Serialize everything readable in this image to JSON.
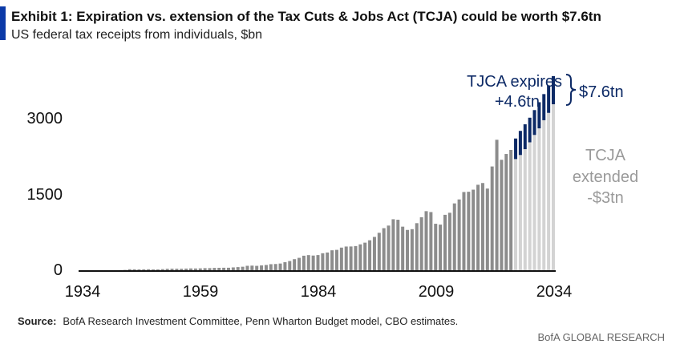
{
  "header": {
    "title": "Exhibit 1: Expiration vs. extension of the Tax Cuts & Jobs Act (TCJA) could be worth $7.6tn",
    "subtitle": "US federal tax receipts from individuals, $bn"
  },
  "chart_data": {
    "type": "bar",
    "title": "Exhibit 1: Expiration vs. extension of the Tax Cuts & Jobs Act (TCJA) could be worth $7.6tn",
    "ylabel": "US federal tax receipts from individuals, $bn",
    "xlabel": "",
    "ylim": [
      0,
      3900
    ],
    "yticks": [
      "0",
      "1500",
      "3000"
    ],
    "xticks": [
      "1934",
      "1959",
      "1984",
      "2009",
      "2034"
    ],
    "start_year": 1934,
    "historical": [
      0.4,
      0.5,
      0.7,
      1.1,
      1.3,
      1.0,
      0.9,
      1.3,
      3.3,
      6.5,
      19.7,
      18.4,
      16.1,
      17.9,
      19.3,
      15.6,
      15.8,
      21.6,
      27.9,
      29.8,
      29.5,
      28.7,
      32.2,
      35.6,
      34.7,
      36.7,
      40.7,
      41.3,
      45.6,
      47.6,
      48.7,
      48.8,
      55.4,
      61.5,
      68.7,
      87.2,
      90.4,
      86.2,
      94.7,
      103.2,
      119,
      122.4,
      131.6,
      157.6,
      181,
      217.8,
      244.1,
      285.9,
      297.7,
      288.9,
      298.4,
      334.5,
      349,
      392.6,
      401.2,
      445.7,
      466.9,
      467.8,
      476,
      509.7,
      543.1,
      590.2,
      656.4,
      737.5,
      828.6,
      879.5,
      1004.5,
      994.3,
      858.3,
      793.7,
      809,
      927.2,
      1043.9,
      1163.5,
      1145.7,
      915.3,
      898.5,
      1091.5,
      1132.2,
      1316.4,
      1394.6,
      1540.8,
      1546.1,
      1587.1,
      1683.5,
      1717.9,
      1608.7,
      2044.4,
      2570,
      2176,
      2290,
      2370
    ],
    "projection_start_year": 2026,
    "series": [
      {
        "name": "TCJA extended",
        "color": "#d3d3d3",
        "values": [
          2190,
          2270,
          2385,
          2520,
          2665,
          2795,
          2955,
          3100,
          3270
        ]
      },
      {
        "name": "TCJA expires",
        "color": "#0d2a66",
        "values": [
          2595,
          2745,
          2875,
          3005,
          3155,
          3310,
          3470,
          3640,
          3825
        ]
      }
    ],
    "historical_color": "#8c8c8c",
    "annotations": {
      "expires_line1": "TJCA expires",
      "expires_line2": "+4.6tn",
      "total": "$7.6tn",
      "extended_line1": "TCJA",
      "extended_line2": "extended",
      "extended_line3": "-$3tn"
    }
  },
  "footer": {
    "source_label": "Source:",
    "source_text": "BofA Research Investment Committee, Penn Wharton Budget model, CBO estimates.",
    "brand": "BofA GLOBAL RESEARCH"
  }
}
